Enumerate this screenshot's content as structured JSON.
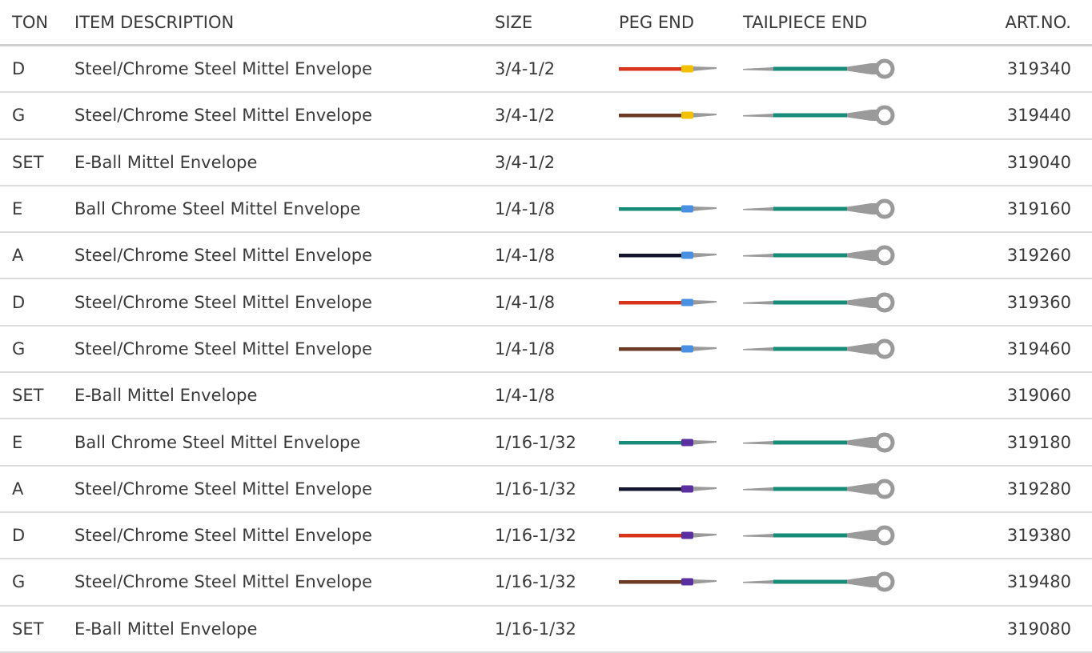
{
  "header": {
    "ton": "TON",
    "description": "ITEM DESCRIPTION",
    "size": "SIZE",
    "peg_end": "PEG END",
    "tailpiece_end": "TAILPIECE END",
    "art_no": "ART.NO."
  },
  "table": {
    "rows": [
      {
        "ton": "D",
        "description": "Steel/Chrome Steel Mittel Envelope",
        "size": "3/4-1/2",
        "peg_color": "#d8341c",
        "bead_color": "#f2c200",
        "art_no": "319340"
      },
      {
        "ton": "G",
        "description": "Steel/Chrome Steel Mittel Envelope",
        "size": "3/4-1/2",
        "peg_color": "#6b3a24",
        "bead_color": "#f2c200",
        "art_no": "319440"
      },
      {
        "ton": "SET",
        "description": "E-Ball Mittel Envelope",
        "size": "3/4-1/2",
        "art_no": "319040"
      },
      {
        "ton": "E",
        "description": "Ball Chrome Steel Mittel Envelope",
        "size": "1/4-1/8",
        "peg_color": "#178c78",
        "bead_color": "#4a90e2",
        "art_no": "319160"
      },
      {
        "ton": "A",
        "description": "Steel/Chrome Steel Mittel Envelope",
        "size": "1/4-1/8",
        "peg_color": "#14132e",
        "bead_color": "#4a90e2",
        "art_no": "319260"
      },
      {
        "ton": "D",
        "description": "Steel/Chrome Steel Mittel Envelope",
        "size": "1/4-1/8",
        "peg_color": "#d8341c",
        "bead_color": "#4a90e2",
        "art_no": "319360"
      },
      {
        "ton": "G",
        "description": "Steel/Chrome Steel Mittel Envelope",
        "size": "1/4-1/8",
        "peg_color": "#6b3a24",
        "bead_color": "#4a90e2",
        "art_no": "319460"
      },
      {
        "ton": "SET",
        "description": "E-Ball Mittel Envelope",
        "size": "1/4-1/8",
        "art_no": "319060"
      },
      {
        "ton": "E",
        "description": "Ball Chrome Steel Mittel Envelope",
        "size": "1/16-1/32",
        "peg_color": "#178c78",
        "bead_color": "#5a2fa0",
        "art_no": "319180"
      },
      {
        "ton": "A",
        "description": "Steel/Chrome Steel Mittel Envelope",
        "size": "1/16-1/32",
        "peg_color": "#14132e",
        "bead_color": "#5a2fa0",
        "art_no": "319280"
      },
      {
        "ton": "D",
        "description": "Steel/Chrome Steel Mittel Envelope",
        "size": "1/16-1/32",
        "peg_color": "#d8341c",
        "bead_color": "#5a2fa0",
        "art_no": "319380"
      },
      {
        "ton": "G",
        "description": "Steel/Chrome Steel Mittel Envelope",
        "size": "1/16-1/32",
        "peg_color": "#6b3a24",
        "bead_color": "#5a2fa0",
        "art_no": "319480"
      },
      {
        "ton": "SET",
        "description": "E-Ball Mittel Envelope",
        "size": "1/16-1/32",
        "art_no": "319080"
      }
    ],
    "tailpiece_color": "#178c78"
  }
}
